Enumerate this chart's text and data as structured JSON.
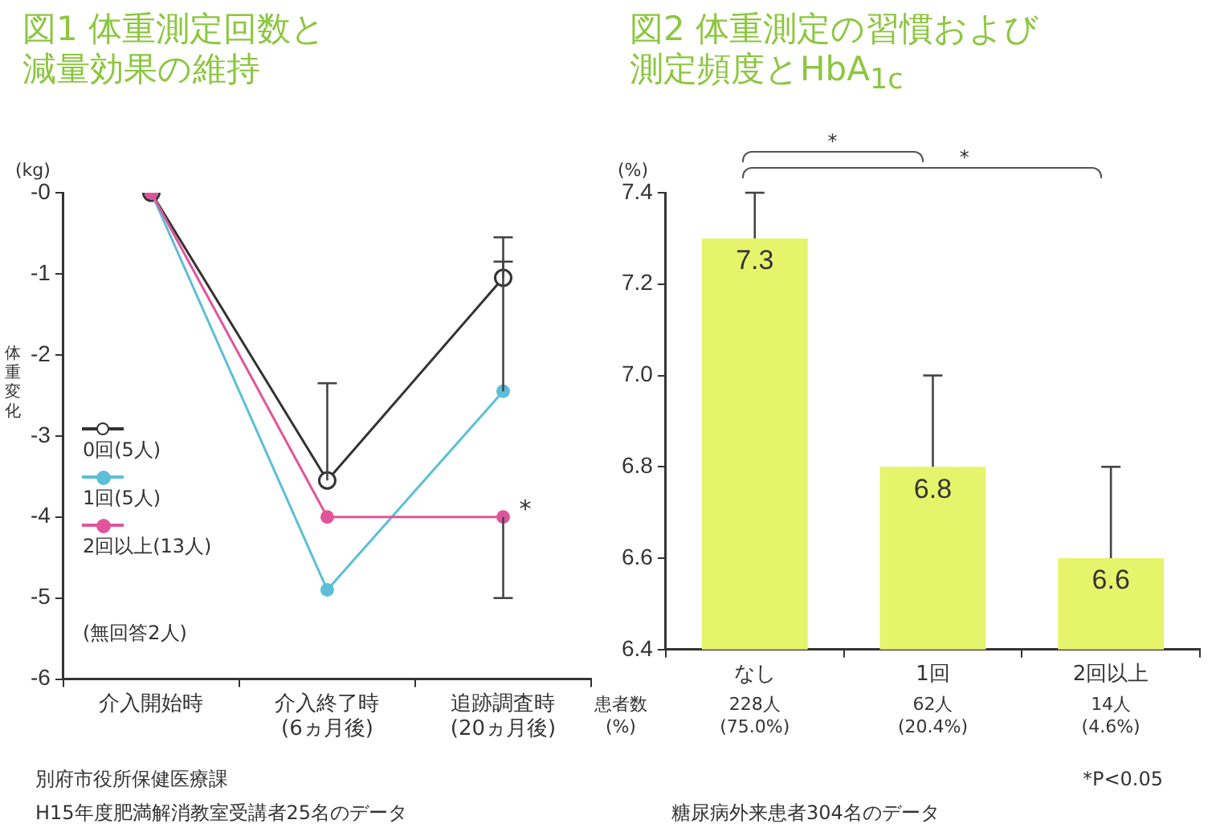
{
  "chart_data": [
    {
      "type": "line",
      "title": "図1 体重測定回数と減量効果の維持",
      "ylabel": "(kg)",
      "categories": [
        "介入開始時",
        "介入終了時\n(6ヵ月後)",
        "追跡調査時\n(20ヵ月後)"
      ],
      "series": [
        {
          "name": "0回(5人)",
          "color": "#333333",
          "values": [
            0,
            -3.55,
            -1.05
          ],
          "errors": [
            null,
            [
              -3.55,
              -2.35
            ],
            [
              -1.05,
              -0.55
            ]
          ]
        },
        {
          "name": "1回(5人)",
          "color": "#5bbfd6",
          "values": [
            0,
            -4.9,
            -2.45
          ],
          "errors": [
            null,
            null,
            [
              -2.45,
              -0.85
            ]
          ]
        },
        {
          "name": "2回以上(13人)",
          "color": "#e0559a",
          "values": [
            0,
            -4.0,
            -4.0
          ],
          "errors": [
            null,
            null,
            [
              -5.0,
              -4.0
            ]
          ]
        }
      ],
      "ylim": [
        -6,
        0
      ],
      "yticks": [
        {
          "value": 0,
          "label": "-0"
        },
        -1,
        -2,
        -3,
        -4,
        -5,
        -6
      ],
      "grid": false,
      "legend": "left",
      "marker": "circle",
      "annotations": [
        "体重変化",
        "(無回答2人)",
        "別府市役所保健医療課",
        "H15年度肥満解消教室受講者25名のデータ",
        {
          "text": "*",
          "x": "追跡調査時\n(20ヵ月後)",
          "y": -4.0
        }
      ]
    },
    {
      "type": "bar",
      "title": "図2 体重測定の習慣および測定頻度とHbA$_{1c}$",
      "ylabel": "(%)",
      "categories": [
        "なし",
        "1回",
        "2回以上"
      ],
      "values": [
        7.3,
        6.8,
        6.6
      ],
      "color": "#e6f46c",
      "errors": [
        [
          7.3,
          7.4
        ],
        [
          6.8,
          7.0
        ],
        [
          6.6,
          6.8
        ]
      ],
      "ylim": [
        6.4,
        7.4
      ],
      "yticks": [
        {
          "value": 6.4,
          "label": "6.4"
        },
        {
          "value": 6.6,
          "label": "6.6"
        },
        {
          "value": 6.8,
          "label": "6.8"
        },
        {
          "value": 7.0,
          "label": "7.0"
        },
        {
          "value": 7.2,
          "label": "7.2"
        },
        {
          "value": 7.4,
          "label": "7.4"
        }
      ],
      "grid": false,
      "data_labels": true,
      "annotations": [
        "*",
        "*",
        "患者数\n(%)",
        "228人\n(75.0%)",
        "62人\n(20.4%)",
        "14人\n(4.6%)",
        "*P<0.05",
        "糖尿病外来患者304名のデータ"
      ]
    }
  ]
}
